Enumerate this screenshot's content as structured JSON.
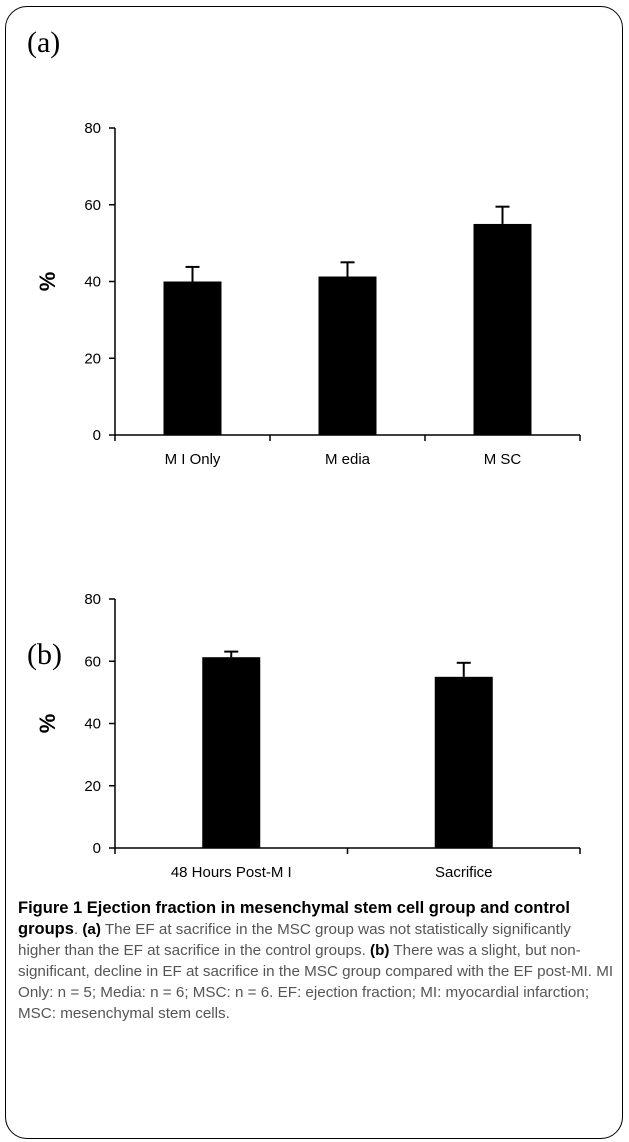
{
  "chart_data": [
    {
      "type": "bar",
      "panel_label": "(a)",
      "ylabel": "%",
      "ylim": [
        0,
        80
      ],
      "yticks": [
        0,
        20,
        40,
        60,
        80
      ],
      "categories": [
        "M I Only",
        "M edia",
        "M SC"
      ],
      "values": [
        40,
        41.3,
        55
      ],
      "errors": [
        3.8,
        3.7,
        4.5
      ],
      "bar_color": "#000000"
    },
    {
      "type": "bar",
      "panel_label": "(b)",
      "ylabel": "%",
      "ylim": [
        0,
        80
      ],
      "yticks": [
        0,
        20,
        40,
        60,
        80
      ],
      "categories": [
        "48 Hours Post-M I",
        "Sacrifice"
      ],
      "values": [
        61.3,
        55
      ],
      "errors": [
        1.8,
        4.5
      ],
      "bar_color": "#000000"
    }
  ],
  "caption": {
    "title": "Figure 1 Ejection fraction in mesenchymal stem cell group and control groups",
    "a_label": "(a)",
    "a_text": " The EF at sacrifice in the MSC group was not statistically significantly higher than the EF at sacrifice in the control groups. ",
    "b_label": "(b)",
    "b_text": " There was a slight, but non-significant, decline in EF at sacrifice in the MSC group compared with the EF post-MI. MI Only: n = 5; Media: n = 6; MSC: n = 6. EF: ejection fraction; MI: myocardial infarction; MSC: mesenchymal stem cells."
  }
}
